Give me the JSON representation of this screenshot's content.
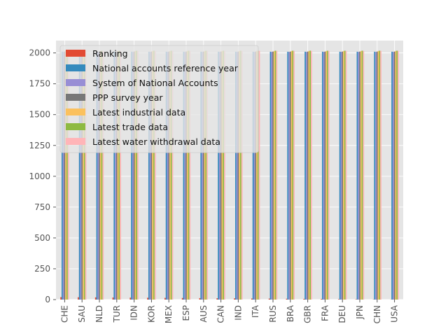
{
  "chart_data": {
    "type": "bar",
    "title": "",
    "xlabel": "",
    "ylabel": "",
    "ylim": [
      0,
      2100
    ],
    "yticks": [
      0,
      250,
      500,
      750,
      1000,
      1250,
      1500,
      1750,
      2000
    ],
    "grid": true,
    "legend_position": "upper-left",
    "categories": [
      "CHE",
      "SAU",
      "NLD",
      "TUR",
      "IDN",
      "KOR",
      "MEX",
      "ESP",
      "AUS",
      "CAN",
      "IND",
      "ITA",
      "RUS",
      "BRA",
      "GBR",
      "FRA",
      "DEU",
      "JPN",
      "CHN",
      "USA"
    ],
    "series": [
      {
        "name": "Ranking",
        "color": "#E24A33",
        "values": [
          20,
          19,
          18,
          17,
          16,
          15,
          14,
          13,
          12,
          11,
          10,
          9,
          8,
          7,
          6,
          5,
          4,
          3,
          2,
          1
        ]
      },
      {
        "name": "National accounts reference year",
        "color": "#348ABD",
        "values": [
          2010,
          2010,
          2010,
          2010,
          2010,
          2010,
          2010,
          2010,
          2010,
          2010,
          2010,
          2010,
          2010,
          2010,
          2010,
          2010,
          2010,
          2010,
          2010,
          2010
        ]
      },
      {
        "name": "System of National Accounts",
        "color": "#988ED5",
        "values": [
          2008,
          2008,
          2008,
          2008,
          2008,
          2008,
          2008,
          2008,
          2008,
          2008,
          2008,
          2008,
          2008,
          2008,
          2008,
          2008,
          2008,
          2008,
          2008,
          2008
        ]
      },
      {
        "name": "PPP survey year",
        "color": "#777777",
        "values": [
          2011,
          2011,
          2011,
          2011,
          2011,
          2011,
          2011,
          2011,
          2011,
          2011,
          2011,
          2011,
          2011,
          2011,
          2011,
          2011,
          2011,
          2011,
          2011,
          2011
        ]
      },
      {
        "name": "Latest industrial data",
        "color": "#FBC15E",
        "values": [
          2016,
          2016,
          2016,
          2016,
          2016,
          2016,
          2016,
          2016,
          2016,
          2016,
          2016,
          2016,
          2016,
          2016,
          2016,
          2016,
          2016,
          2016,
          2016,
          2016
        ]
      },
      {
        "name": "Latest trade data",
        "color": "#8EBA42",
        "values": [
          2018,
          2018,
          2018,
          2018,
          2018,
          2018,
          2018,
          2018,
          2018,
          2018,
          2018,
          2018,
          2018,
          2018,
          2018,
          2018,
          2018,
          2018,
          2018,
          2018
        ]
      },
      {
        "name": "Latest water withdrawal data",
        "color": "#FFB5B8",
        "values": [
          2017,
          2017,
          2017,
          2017,
          2017,
          2017,
          2017,
          2017,
          2017,
          2017,
          2017,
          2017,
          2017,
          2017,
          2017,
          2017,
          2017,
          2017,
          2017,
          2017
        ]
      }
    ]
  },
  "style": {
    "plot_background": "#E5E5E5",
    "grid_color": "#FFFFFF",
    "tick_color": "#555555"
  }
}
